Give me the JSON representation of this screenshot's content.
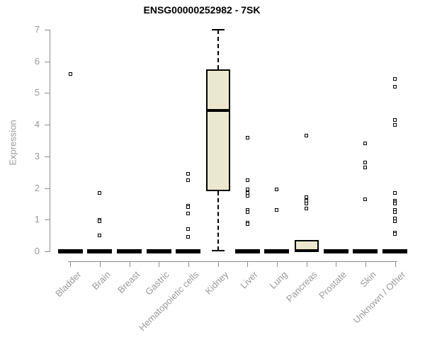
{
  "chart_data": {
    "type": "boxplot",
    "title": "ENSG00000252982 - 7SK",
    "xlabel": "",
    "ylabel": "Expression",
    "ylim": [
      0,
      7
    ],
    "yticks": [
      0,
      1,
      2,
      3,
      4,
      5,
      6,
      7
    ],
    "grid": false,
    "legend": false,
    "categories": [
      "Bladder",
      "Brain",
      "Breast",
      "Gastric",
      "Hematopoietic cells",
      "Kidney",
      "Liver",
      "Lung",
      "Pancreas",
      "Prostate",
      "Skin",
      "Unknown / Other"
    ],
    "boxes": [
      {
        "category": "Bladder",
        "q1": 0,
        "median": 0,
        "q3": 0,
        "whisker_low": 0,
        "whisker_high": 0,
        "outliers": [
          5.6
        ]
      },
      {
        "category": "Brain",
        "q1": 0,
        "median": 0,
        "q3": 0,
        "whisker_low": 0,
        "whisker_high": 0,
        "outliers": [
          1.85,
          1.0,
          0.95,
          0.5
        ]
      },
      {
        "category": "Breast",
        "q1": 0,
        "median": 0,
        "q3": 0,
        "whisker_low": 0,
        "whisker_high": 0,
        "outliers": []
      },
      {
        "category": "Gastric",
        "q1": 0,
        "median": 0,
        "q3": 0,
        "whisker_low": 0,
        "whisker_high": 0,
        "outliers": []
      },
      {
        "category": "Hematopoietic cells",
        "q1": 0,
        "median": 0,
        "q3": 0,
        "whisker_low": 0,
        "whisker_high": 0,
        "outliers": [
          2.45,
          2.25,
          1.45,
          1.4,
          1.2,
          0.7,
          0.45
        ]
      },
      {
        "category": "Kidney",
        "q1": 1.9,
        "median": 4.45,
        "q3": 5.75,
        "whisker_low": 0.02,
        "whisker_high": 7.0,
        "outliers": []
      },
      {
        "category": "Liver",
        "q1": 0,
        "median": 0,
        "q3": 0,
        "whisker_low": 0,
        "whisker_high": 0,
        "outliers": [
          3.6,
          2.25,
          1.95,
          1.85,
          1.75,
          1.3,
          1.25,
          0.9,
          0.85
        ]
      },
      {
        "category": "Lung",
        "q1": 0,
        "median": 0,
        "q3": 0,
        "whisker_low": 0,
        "whisker_high": 0,
        "outliers": [
          1.95,
          1.3
        ]
      },
      {
        "category": "Pancreas",
        "q1": 0,
        "median": 0.02,
        "q3": 0.35,
        "whisker_low": 0,
        "whisker_high": 0.35,
        "outliers": [
          3.65,
          1.7,
          1.6,
          1.5,
          1.35
        ]
      },
      {
        "category": "Prostate",
        "q1": 0,
        "median": 0,
        "q3": 0,
        "whisker_low": 0,
        "whisker_high": 0,
        "outliers": []
      },
      {
        "category": "Skin",
        "q1": 0,
        "median": 0,
        "q3": 0,
        "whisker_low": 0,
        "whisker_high": 0,
        "outliers": [
          3.4,
          2.8,
          2.65,
          1.65
        ]
      },
      {
        "category": "Unknown / Other",
        "q1": 0,
        "median": 0,
        "q3": 0,
        "whisker_low": 0,
        "whisker_high": 0,
        "outliers": [
          5.45,
          5.2,
          4.15,
          4.0,
          1.85,
          1.6,
          1.55,
          1.5,
          1.3,
          1.25,
          1.05,
          0.95,
          0.6,
          0.55
        ]
      }
    ],
    "colors": {
      "box_fill": "#ece8d0",
      "box_stroke": "#000000",
      "axis": "#8c8c8c",
      "axis_text": "#999999",
      "title_text": "#000000"
    }
  }
}
